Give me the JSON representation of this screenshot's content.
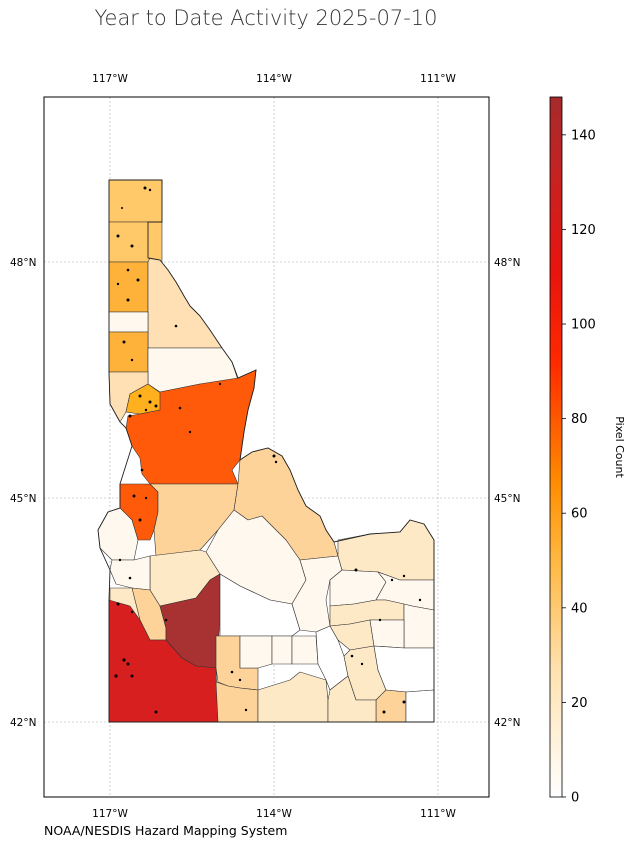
{
  "title": "Year to Date Activity 2025-07-10",
  "credit": "NOAA/NESDIS Hazard Mapping System",
  "colorbar": {
    "label": "Pixel Count",
    "min": 0,
    "max": 148,
    "ticks": [
      "0",
      "20",
      "40",
      "60",
      "80",
      "100",
      "120",
      "140"
    ],
    "tick_values": [
      0,
      20,
      40,
      60,
      80,
      100,
      120,
      140
    ],
    "colormap": "hot_r (white → orange → red → dark red)"
  },
  "axes": {
    "lon_ticks": [
      "117°W",
      "114°W",
      "111°W"
    ],
    "lat_ticks": [
      "48°N",
      "45°N",
      "42°N"
    ],
    "gridlines": true
  },
  "colors": {
    "highest": "#a83232",
    "high": "#d81f1f",
    "orange_red": "#ff5a0a",
    "amber": "#ffb23a",
    "light_amber": "#ffc868",
    "tan": "#fdd39a",
    "cream": "#fee9c7",
    "pale": "#fff8ee",
    "zero": "#ffffff"
  }
}
